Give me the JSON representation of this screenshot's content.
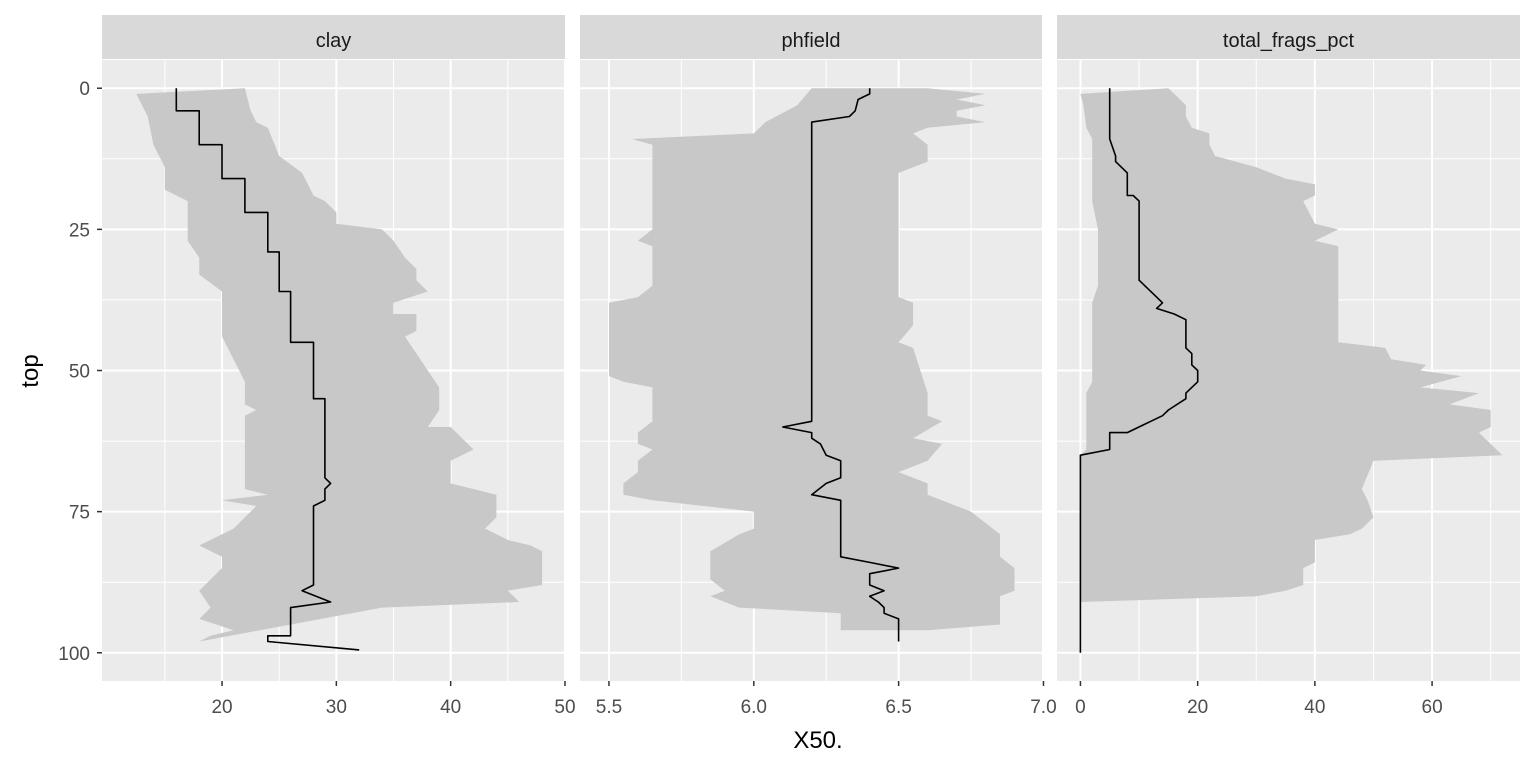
{
  "chart_data": {
    "type": "area",
    "xlabel": "X50.",
    "ylabel": "top",
    "y_axis": {
      "ticks": [
        0,
        25,
        50,
        75,
        100
      ],
      "range": [
        105,
        -5
      ],
      "reversed": true
    },
    "colors": {
      "panel_bg": "#EBEBEB",
      "strip_bg": "#D9D9D9",
      "band": "#C8C8C8",
      "line": "#000000",
      "grid": "#FFFFFF"
    },
    "panels": [
      {
        "title": "clay",
        "xlim": [
          9.5,
          50
        ],
        "xticks": [
          20,
          30,
          40,
          50
        ],
        "x_minor": [
          15,
          25,
          35,
          45
        ],
        "median": [
          [
            16,
            0
          ],
          [
            16,
            4
          ],
          [
            18,
            4
          ],
          [
            18,
            10
          ],
          [
            20,
            10
          ],
          [
            20,
            16
          ],
          [
            22,
            16
          ],
          [
            22,
            22
          ],
          [
            24,
            22
          ],
          [
            24,
            29
          ],
          [
            25,
            29
          ],
          [
            25,
            36
          ],
          [
            26,
            36
          ],
          [
            26,
            45
          ],
          [
            28,
            45
          ],
          [
            28,
            55
          ],
          [
            29,
            55
          ],
          [
            29,
            69
          ],
          [
            29.5,
            70
          ],
          [
            29,
            71
          ],
          [
            29,
            73
          ],
          [
            28,
            74
          ],
          [
            28,
            88
          ],
          [
            27,
            89
          ],
          [
            29.5,
            91
          ],
          [
            26,
            92
          ],
          [
            26,
            97
          ],
          [
            24,
            97
          ],
          [
            24,
            98
          ],
          [
            32,
            99.5
          ]
        ],
        "q_low": [
          [
            12.5,
            1
          ],
          [
            13.5,
            5
          ],
          [
            14,
            10
          ],
          [
            15,
            14
          ],
          [
            15,
            18
          ],
          [
            17,
            20
          ],
          [
            17,
            27
          ],
          [
            18,
            30
          ],
          [
            18,
            33
          ],
          [
            20,
            36
          ],
          [
            20,
            44
          ],
          [
            21,
            48
          ],
          [
            22,
            52
          ],
          [
            22,
            56
          ],
          [
            23,
            57
          ],
          [
            22,
            58
          ],
          [
            22,
            71
          ],
          [
            24,
            72
          ],
          [
            20,
            73
          ],
          [
            23,
            74
          ],
          [
            21,
            78
          ],
          [
            19,
            80
          ],
          [
            18,
            81
          ],
          [
            20,
            83
          ],
          [
            20,
            85
          ],
          [
            18,
            89
          ],
          [
            19,
            92
          ],
          [
            18,
            94
          ],
          [
            21,
            96
          ],
          [
            19,
            97
          ],
          [
            18,
            98
          ]
        ],
        "q_high": [
          [
            22,
            0
          ],
          [
            22.5,
            4
          ],
          [
            23,
            6
          ],
          [
            24,
            7
          ],
          [
            25,
            12
          ],
          [
            27,
            15
          ],
          [
            28,
            19
          ],
          [
            29,
            20
          ],
          [
            30,
            22
          ],
          [
            30,
            24
          ],
          [
            34,
            25
          ],
          [
            35,
            27
          ],
          [
            36,
            30
          ],
          [
            37,
            32
          ],
          [
            37,
            34
          ],
          [
            38,
            36
          ],
          [
            35,
            38
          ],
          [
            35,
            40
          ],
          [
            37,
            40
          ],
          [
            37,
            43
          ],
          [
            36,
            44
          ],
          [
            38,
            50
          ],
          [
            39,
            53
          ],
          [
            39,
            57
          ],
          [
            38,
            60
          ],
          [
            40,
            60
          ],
          [
            42,
            64
          ],
          [
            40,
            66
          ],
          [
            40,
            70
          ],
          [
            44,
            72
          ],
          [
            44,
            76
          ],
          [
            43,
            78
          ],
          [
            44,
            79
          ],
          [
            45,
            80
          ],
          [
            47,
            81
          ],
          [
            48,
            82
          ],
          [
            48,
            88
          ],
          [
            45,
            89
          ],
          [
            46,
            91
          ],
          [
            34,
            92
          ]
        ]
      },
      {
        "title": "phfield",
        "xlim": [
          5.4,
          6.995
        ],
        "xticks": [
          5.5,
          6.0,
          6.5,
          7.0
        ],
        "x_minor": [
          5.75,
          6.25,
          6.75
        ],
        "median": [
          [
            6.4,
            0
          ],
          [
            6.4,
            1
          ],
          [
            6.36,
            2
          ],
          [
            6.35,
            4
          ],
          [
            6.33,
            5
          ],
          [
            6.2,
            6
          ],
          [
            6.2,
            59
          ],
          [
            6.1,
            60
          ],
          [
            6.2,
            61
          ],
          [
            6.2,
            62
          ],
          [
            6.23,
            63
          ],
          [
            6.25,
            65
          ],
          [
            6.3,
            66
          ],
          [
            6.3,
            69
          ],
          [
            6.25,
            70
          ],
          [
            6.2,
            72
          ],
          [
            6.3,
            73
          ],
          [
            6.3,
            83
          ],
          [
            6.4,
            84
          ],
          [
            6.5,
            85
          ],
          [
            6.4,
            86
          ],
          [
            6.4,
            88
          ],
          [
            6.45,
            89
          ],
          [
            6.4,
            90
          ],
          [
            6.43,
            91
          ],
          [
            6.45,
            92
          ],
          [
            6.45,
            93
          ],
          [
            6.5,
            94
          ],
          [
            6.5,
            98
          ]
        ],
        "q_low": [
          [
            6.2,
            0
          ],
          [
            6.15,
            3
          ],
          [
            6.04,
            6
          ],
          [
            6.0,
            8
          ],
          [
            5.58,
            9
          ],
          [
            5.65,
            10
          ],
          [
            5.65,
            25
          ],
          [
            5.6,
            27
          ],
          [
            5.65,
            28
          ],
          [
            5.65,
            35
          ],
          [
            5.6,
            37
          ],
          [
            5.5,
            38
          ],
          [
            5.5,
            51
          ],
          [
            5.55,
            52
          ],
          [
            5.65,
            53
          ],
          [
            5.65,
            59
          ],
          [
            5.6,
            61
          ],
          [
            5.6,
            63
          ],
          [
            5.65,
            64
          ],
          [
            5.6,
            66
          ],
          [
            5.6,
            68
          ],
          [
            5.55,
            70
          ],
          [
            5.55,
            72
          ],
          [
            5.65,
            73
          ],
          [
            6.0,
            75
          ],
          [
            6.0,
            78
          ],
          [
            5.95,
            79
          ],
          [
            5.85,
            82
          ],
          [
            5.85,
            87
          ],
          [
            5.9,
            89
          ],
          [
            5.85,
            90
          ],
          [
            5.95,
            92
          ],
          [
            6.3,
            93
          ],
          [
            6.3,
            96
          ]
        ],
        "q_high": [
          [
            6.6,
            0
          ],
          [
            6.8,
            1
          ],
          [
            6.7,
            2
          ],
          [
            6.8,
            3
          ],
          [
            6.7,
            4
          ],
          [
            6.7,
            5
          ],
          [
            6.8,
            6
          ],
          [
            6.6,
            7
          ],
          [
            6.55,
            8
          ],
          [
            6.6,
            10
          ],
          [
            6.6,
            13
          ],
          [
            6.5,
            15
          ],
          [
            6.5,
            37
          ],
          [
            6.55,
            38
          ],
          [
            6.55,
            42
          ],
          [
            6.5,
            45
          ],
          [
            6.55,
            46
          ],
          [
            6.6,
            54
          ],
          [
            6.6,
            58
          ],
          [
            6.65,
            59
          ],
          [
            6.55,
            62
          ],
          [
            6.65,
            63
          ],
          [
            6.6,
            66
          ],
          [
            6.5,
            68
          ],
          [
            6.6,
            70
          ],
          [
            6.6,
            72
          ],
          [
            6.75,
            75
          ],
          [
            6.85,
            79
          ],
          [
            6.85,
            83
          ],
          [
            6.9,
            85
          ],
          [
            6.9,
            89
          ],
          [
            6.85,
            90
          ],
          [
            6.85,
            92
          ],
          [
            6.85,
            93
          ],
          [
            6.85,
            95
          ],
          [
            6.6,
            96
          ]
        ]
      },
      {
        "title": "total_frags_pct",
        "xlim": [
          -4,
          75
        ],
        "xticks": [
          0,
          20,
          40,
          60
        ],
        "x_minor": [
          10,
          30,
          50,
          70
        ],
        "median": [
          [
            5,
            0
          ],
          [
            5,
            9
          ],
          [
            6,
            12
          ],
          [
            6,
            13
          ],
          [
            8,
            15
          ],
          [
            8,
            17
          ],
          [
            8,
            19
          ],
          [
            9,
            19
          ],
          [
            10,
            20
          ],
          [
            10,
            26
          ],
          [
            10,
            34
          ],
          [
            13,
            37
          ],
          [
            14,
            38
          ],
          [
            13,
            39
          ],
          [
            16,
            40
          ],
          [
            18,
            41
          ],
          [
            18,
            45
          ],
          [
            18,
            46
          ],
          [
            19,
            47
          ],
          [
            19,
            49
          ],
          [
            20,
            50
          ],
          [
            20,
            52
          ],
          [
            19,
            53
          ],
          [
            18,
            54
          ],
          [
            18,
            55
          ],
          [
            15,
            57
          ],
          [
            14,
            58
          ],
          [
            12,
            59
          ],
          [
            8,
            61
          ],
          [
            5,
            61
          ],
          [
            5,
            64
          ],
          [
            0,
            65
          ],
          [
            0,
            100
          ]
        ],
        "q_low": [
          [
            0,
            1
          ],
          [
            0.5,
            3
          ],
          [
            1,
            7
          ],
          [
            2,
            9
          ],
          [
            2,
            14
          ],
          [
            2,
            20
          ],
          [
            3,
            25
          ],
          [
            3,
            35
          ],
          [
            2,
            38
          ],
          [
            2,
            52
          ],
          [
            1,
            54
          ],
          [
            1,
            64
          ],
          [
            0,
            65
          ],
          [
            0,
            91
          ]
        ],
        "q_high": [
          [
            15,
            0
          ],
          [
            17,
            2
          ],
          [
            18,
            3
          ],
          [
            18,
            5
          ],
          [
            19,
            7
          ],
          [
            22,
            8
          ],
          [
            22,
            10
          ],
          [
            23,
            12
          ],
          [
            30,
            14
          ],
          [
            35,
            16
          ],
          [
            40,
            17
          ],
          [
            40,
            19
          ],
          [
            38,
            20
          ],
          [
            40,
            24
          ],
          [
            44,
            25
          ],
          [
            40,
            27
          ],
          [
            44,
            28
          ],
          [
            44,
            33
          ],
          [
            44,
            45
          ],
          [
            52,
            46
          ],
          [
            53,
            48
          ],
          [
            59,
            49
          ],
          [
            58,
            50
          ],
          [
            65,
            51
          ],
          [
            58,
            53
          ],
          [
            68,
            54
          ],
          [
            63,
            56
          ],
          [
            70,
            57
          ],
          [
            70,
            60
          ],
          [
            68,
            61
          ],
          [
            72,
            65
          ],
          [
            50,
            66
          ],
          [
            48,
            71
          ],
          [
            49,
            73
          ],
          [
            50,
            76
          ],
          [
            48,
            78
          ],
          [
            46,
            79
          ],
          [
            40,
            80
          ],
          [
            40,
            84
          ],
          [
            38,
            85
          ],
          [
            38,
            88
          ],
          [
            35,
            89
          ],
          [
            30,
            90
          ]
        ]
      }
    ]
  }
}
